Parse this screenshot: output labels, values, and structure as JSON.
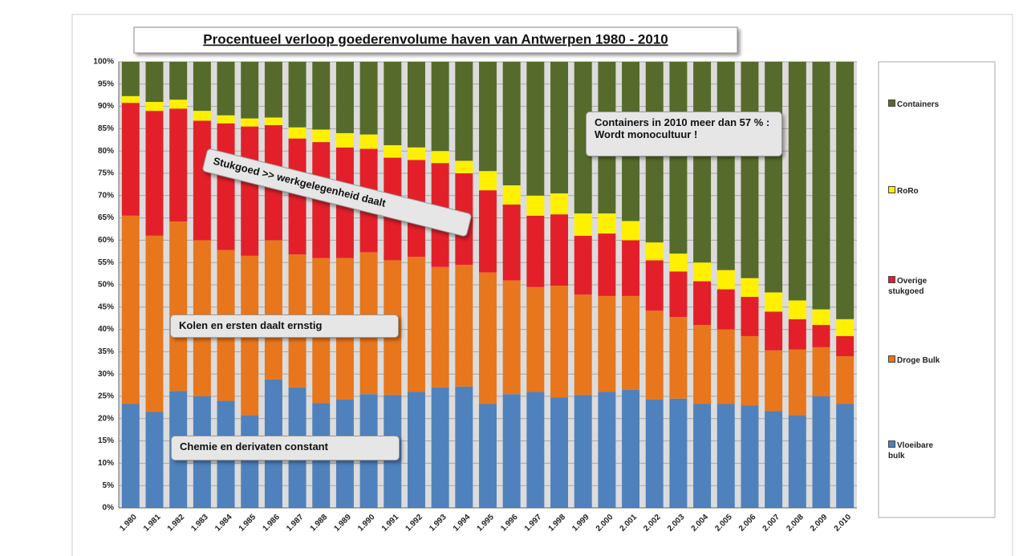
{
  "chart_data": {
    "type": "stacked-bar",
    "title": "Procentueel verloop goederenvolume haven van Antwerpen 1980 - 2010",
    "categories": [
      "1.980",
      "1.981",
      "1.982",
      "1.983",
      "1.984",
      "1.985",
      "1.986",
      "1.987",
      "1.988",
      "1.989",
      "1.990",
      "1.991",
      "1.992",
      "1.993",
      "1.994",
      "1.995",
      "1.996",
      "1.997",
      "1.998",
      "1.999",
      "2.000",
      "2.001",
      "2.002",
      "2.003",
      "2.004",
      "2.005",
      "2.006",
      "2.007",
      "2.008",
      "2.009",
      "2.010"
    ],
    "series": [
      {
        "name": "Vloeibare bulk",
        "color": "#4f81bd",
        "values": [
          23.3,
          21.5,
          26.2,
          25,
          24,
          20.8,
          28.8,
          27,
          23.5,
          24.3,
          25.5,
          25.3,
          26,
          27,
          27.2,
          23.3,
          25.5,
          26,
          24.8,
          25.3,
          26,
          26.5,
          24.3,
          24.5,
          23.3,
          23.3,
          23,
          21.7,
          20.8,
          25,
          23.3
        ]
      },
      {
        "name": "Droge Bulk",
        "color": "#e8761c",
        "values": [
          42.2,
          39.5,
          38,
          35,
          33.8,
          35.7,
          31.2,
          29.8,
          32.5,
          31.7,
          31.8,
          30.2,
          30.3,
          27,
          27.3,
          29.5,
          25.5,
          23.5,
          25,
          22.5,
          21.5,
          21,
          19.9,
          18.3,
          17.7,
          16.7,
          15.5,
          13.6,
          14.7,
          11,
          10.7
        ]
      },
      {
        "name": "Overige stukgoed",
        "color": "#e3202a",
        "values": [
          25.3,
          28,
          25.3,
          26.8,
          28.4,
          29,
          25.8,
          26,
          26,
          24.8,
          23.2,
          23,
          21.7,
          23.3,
          20.5,
          18.4,
          17,
          16,
          16,
          13.2,
          14,
          12.5,
          11.3,
          10.2,
          9.8,
          9,
          8.8,
          8.7,
          6.8,
          5,
          4.5
        ]
      },
      {
        "name": "RoRo",
        "color": "#fff000",
        "values": [
          1.5,
          2,
          2,
          2.2,
          1.8,
          1.8,
          1.7,
          2.5,
          2.8,
          3.2,
          3.2,
          2.8,
          2.8,
          2.7,
          2.8,
          4.3,
          4.3,
          4.5,
          4.7,
          5,
          4.5,
          4.3,
          4,
          4,
          4.2,
          4.3,
          4.2,
          4.3,
          4.2,
          3.5,
          3.8
        ]
      },
      {
        "name": "Containers",
        "color": "#566b2b",
        "values": [
          7.7,
          9,
          8.5,
          11,
          12,
          12.7,
          12.5,
          14.7,
          15.2,
          16,
          16.3,
          18.7,
          19.2,
          20,
          22.2,
          24.5,
          27.7,
          30,
          29.5,
          34,
          34,
          35.7,
          40.5,
          43,
          45,
          46.7,
          48.5,
          51.7,
          53.5,
          55.5,
          57.7
        ]
      }
    ],
    "ylim": [
      0,
      100
    ],
    "yticks": [
      {
        "value": 0,
        "label": "0%"
      },
      {
        "value": 5,
        "label": "5%"
      },
      {
        "value": 10,
        "label": "10%"
      },
      {
        "value": 15,
        "label": "15%"
      },
      {
        "value": 20,
        "label": "20%"
      },
      {
        "value": 25,
        "label": "25%"
      },
      {
        "value": 30,
        "label": "30%"
      },
      {
        "value": 35,
        "label": "35%"
      },
      {
        "value": 40,
        "label": "40%"
      },
      {
        "value": 45,
        "label": "45%"
      },
      {
        "value": 50,
        "label": "50%"
      },
      {
        "value": 55,
        "label": "55%"
      },
      {
        "value": 60,
        "label": "60%"
      },
      {
        "value": 65,
        "label": "65%"
      },
      {
        "value": 70,
        "label": "70%"
      },
      {
        "value": 75,
        "label": "75%"
      },
      {
        "value": 80,
        "label": "80%"
      },
      {
        "value": 85,
        "label": "85%"
      },
      {
        "value": 90,
        "label": "90%"
      },
      {
        "value": 95,
        "label": "95%"
      },
      {
        "value": 100,
        "label": "100%"
      }
    ],
    "grid": true,
    "legend": "right",
    "annotations": [
      "Stukgoed >> werkgelegenheid  daalt",
      "Kolen en ersten daalt ernstig",
      "Chemie en derivaten constant",
      "Containers in 2010 meer dan 57 % : Wordt monocultuur !"
    ]
  }
}
